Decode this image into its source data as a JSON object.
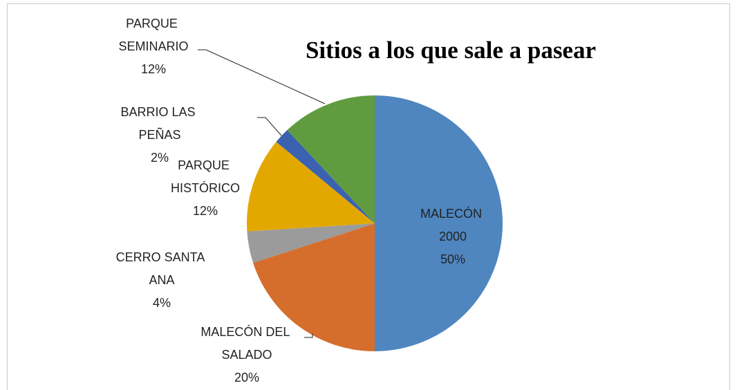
{
  "chart_data": {
    "type": "pie",
    "title": "Sitios a los que sale a pasear",
    "categories": [
      "MALECÓN 2000",
      "MALECÓN DEL SALADO",
      "CERRO SANTA ANA",
      "PARQUE HISTÓRICO",
      "BARRIO LAS PEÑAS",
      "PARQUE SEMINARIO"
    ],
    "values": [
      50,
      20,
      4,
      12,
      2,
      12
    ],
    "value_labels": [
      "50%",
      "20%",
      "4%",
      "12%",
      "2%",
      "12%"
    ],
    "colors": [
      "#4f86c0",
      "#d56e2c",
      "#9b9b9b",
      "#e3a800",
      "#3a62b0",
      "#609c3f"
    ]
  }
}
